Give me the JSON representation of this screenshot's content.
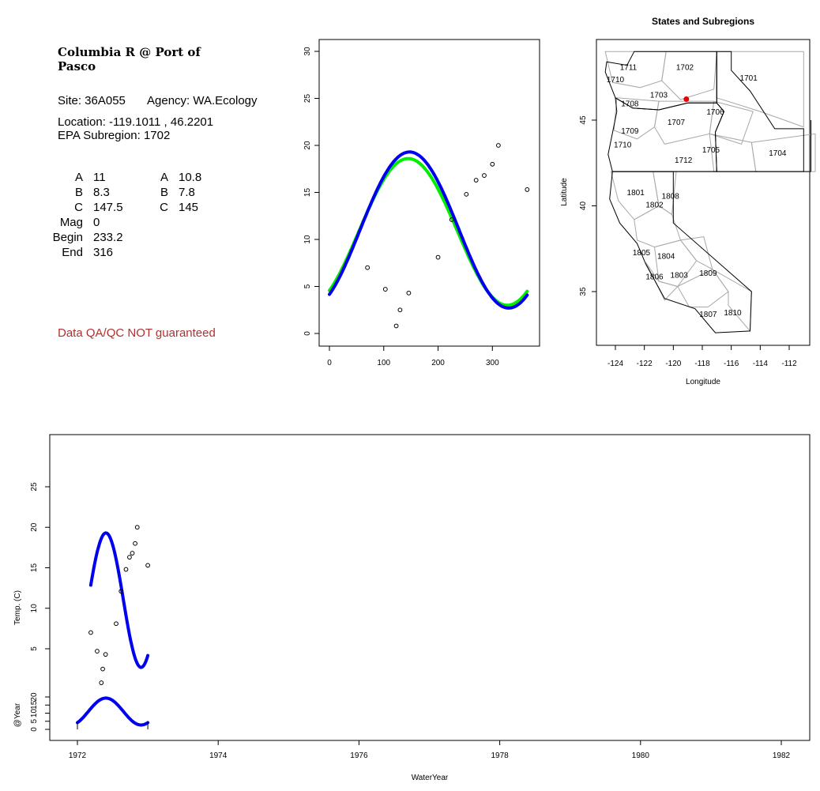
{
  "site_panel": {
    "title_line1": "Columbia R @ Port of",
    "title_line2": "Pasco",
    "site": "Site: 36A055",
    "agency": "Agency: WA.Ecology",
    "location": "Location: -119.1011 , 46.2201",
    "subregion": "EPA Subregion: 1702",
    "params_left": [
      {
        "label": "A",
        "value": "11"
      },
      {
        "label": "B",
        "value": "8.3"
      },
      {
        "label": "C",
        "value": "147.5"
      },
      {
        "label": "Mag",
        "value": "0"
      },
      {
        "label": "Begin",
        "value": "233.2"
      },
      {
        "label": "End",
        "value": "316"
      }
    ],
    "params_right": [
      {
        "label": "A",
        "value": "10.8"
      },
      {
        "label": "B",
        "value": "7.8"
      },
      {
        "label": "C",
        "value": "145"
      }
    ],
    "qa_note": "Data QA/QC NOT guaranteed",
    "qa_color": "#b03030"
  },
  "chart_data": [
    {
      "type": "scatter",
      "name": "seasonal",
      "xlim": [
        0,
        365
      ],
      "ylim": [
        0,
        30
      ],
      "xticks": [
        "0",
        "100",
        "200",
        "300"
      ],
      "yticks": [
        "0",
        "5",
        "10",
        "15",
        "20",
        "25",
        "30"
      ],
      "points": [
        [
          70,
          7.0
        ],
        [
          103,
          4.7
        ],
        [
          123,
          0.8
        ],
        [
          130,
          2.5
        ],
        [
          146,
          4.3
        ],
        [
          200,
          8.1
        ],
        [
          225,
          12.1
        ],
        [
          252,
          14.8
        ],
        [
          270,
          16.3
        ],
        [
          285,
          16.8
        ],
        [
          300,
          18.0
        ],
        [
          311,
          20.0
        ],
        [
          364,
          15.3
        ]
      ],
      "fit_blue": {
        "A": 11,
        "B": 8.3,
        "C": 147.5,
        "color": "#0000ee"
      },
      "fit_green": {
        "A": 10.8,
        "B": 7.8,
        "C": 145,
        "color": "#00ee00"
      },
      "point_color": "#000000"
    },
    {
      "type": "map",
      "name": "states-subregions",
      "title": "States and Subregions",
      "xlabel": "Longitude",
      "ylabel": "Latitude",
      "xlim": [
        -125.5,
        -110.2
      ],
      "ylim": [
        32.2,
        49.5
      ],
      "xticks": [
        "-124",
        "-122",
        "-120",
        "-118",
        "-116",
        "-114",
        "-112"
      ],
      "yticks": [
        "35",
        "40",
        "45"
      ],
      "region_labels": [
        {
          "label": "1711",
          "lon": -123.1,
          "lat": 48.1
        },
        {
          "label": "1702",
          "lon": -119.2,
          "lat": 48.1
        },
        {
          "label": "1701",
          "lon": -114.8,
          "lat": 47.5
        },
        {
          "label": "1710",
          "lon": -124.0,
          "lat": 47.4
        },
        {
          "label": "1703",
          "lon": -121.0,
          "lat": 46.5
        },
        {
          "label": "1708",
          "lon": -123.0,
          "lat": 46.0
        },
        {
          "label": "1706",
          "lon": -117.1,
          "lat": 45.5
        },
        {
          "label": "1707",
          "lon": -119.8,
          "lat": 44.9
        },
        {
          "label": "1709",
          "lon": -123.0,
          "lat": 44.4
        },
        {
          "label": "1710",
          "lon": -123.5,
          "lat": 43.6
        },
        {
          "label": "1705",
          "lon": -117.4,
          "lat": 43.3
        },
        {
          "label": "1704",
          "lon": -112.8,
          "lat": 43.1
        },
        {
          "label": "1712",
          "lon": -119.3,
          "lat": 42.7
        },
        {
          "label": "1801",
          "lon": -122.6,
          "lat": 40.8
        },
        {
          "label": "1808",
          "lon": -120.2,
          "lat": 40.6
        },
        {
          "label": "1802",
          "lon": -121.3,
          "lat": 40.1
        },
        {
          "label": "1805",
          "lon": -122.2,
          "lat": 37.3
        },
        {
          "label": "1804",
          "lon": -120.5,
          "lat": 37.1
        },
        {
          "label": "1806",
          "lon": -121.3,
          "lat": 35.9
        },
        {
          "label": "1803",
          "lon": -119.6,
          "lat": 36.0
        },
        {
          "label": "1809",
          "lon": -117.6,
          "lat": 36.1
        },
        {
          "label": "1810",
          "lon": -115.9,
          "lat": 33.8
        },
        {
          "label": "1807",
          "lon": -117.6,
          "lat": 33.7
        }
      ],
      "site_point": {
        "lon": -119.1011,
        "lat": 46.2201,
        "color": "#ee0000"
      }
    },
    {
      "type": "line",
      "name": "time-series",
      "xlabel": "WaterYear",
      "ylabel": "Temp. (C)",
      "ylabel_small": "@Year",
      "xlim": [
        1971.85,
        1982.4
      ],
      "ylim_main": [
        -3,
        30
      ],
      "ylim_small": [
        -2,
        32
      ],
      "xticks": [
        "1972",
        "1974",
        "1976",
        "1978",
        "1980",
        "1982"
      ],
      "yticks_main": [
        "5",
        "10",
        "15",
        "20",
        "25"
      ],
      "yticks_small": [
        "0",
        "5",
        "10",
        "15",
        "20"
      ],
      "points": [
        [
          1972.19,
          7.0
        ],
        [
          1972.28,
          4.7
        ],
        [
          1972.34,
          0.8
        ],
        [
          1972.36,
          2.5
        ],
        [
          1972.4,
          4.3
        ],
        [
          1972.55,
          8.1
        ],
        [
          1972.62,
          12.1
        ],
        [
          1972.69,
          14.8
        ],
        [
          1972.74,
          16.3
        ],
        [
          1972.78,
          16.8
        ],
        [
          1972.82,
          18.0
        ],
        [
          1972.85,
          20.0
        ],
        [
          1973.0,
          15.3
        ]
      ],
      "fit_x_range": [
        1972.19,
        1973.0
      ],
      "small_x_range": [
        1972.0,
        1973.0
      ],
      "line_color": "#0000ee"
    }
  ]
}
